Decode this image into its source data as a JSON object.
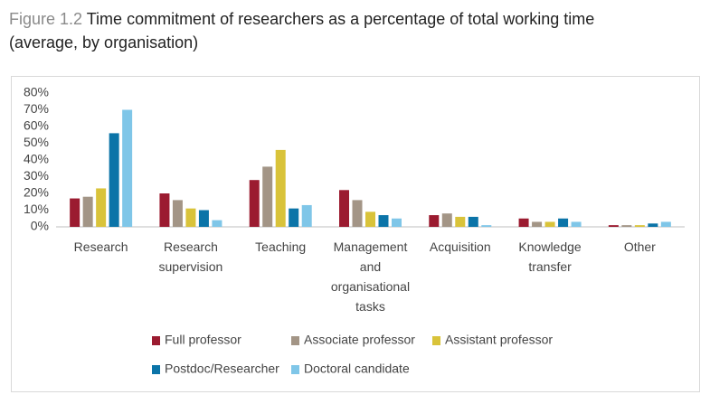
{
  "chart_data": {
    "type": "bar",
    "figure_label": "Figure 1.2",
    "title": "Time commitment of researchers as a percentage of total working time (average, by organisation)",
    "categories": [
      "Research",
      "Research supervision",
      "Teaching",
      "Management and organisational tasks",
      "Acquisition",
      "Knowledge transfer",
      "Other"
    ],
    "series": [
      {
        "name": "Full professor",
        "color": "#9b1b30",
        "values": [
          17,
          20,
          28,
          22,
          7,
          5,
          1
        ]
      },
      {
        "name": "Associate professor",
        "color": "#a39586",
        "values": [
          18,
          16,
          36,
          16,
          8,
          3,
          1
        ]
      },
      {
        "name": "Assistant professor",
        "color": "#d9c33a",
        "values": [
          23,
          11,
          46,
          9,
          6,
          3,
          1
        ]
      },
      {
        "name": "Postdoc/Researcher",
        "color": "#0b74a8",
        "values": [
          56,
          10,
          11,
          7,
          6,
          5,
          2
        ]
      },
      {
        "name": "Doctoral candidate",
        "color": "#7fc6e8",
        "values": [
          70,
          4,
          13,
          5,
          1,
          3,
          3
        ]
      }
    ],
    "ylim": [
      0,
      80
    ],
    "yticks": [
      {
        "value": 0,
        "label": "0%"
      },
      {
        "value": 10,
        "label": "10%"
      },
      {
        "value": 20,
        "label": "20%"
      },
      {
        "value": 30,
        "label": "30%"
      },
      {
        "value": 40,
        "label": "40%"
      },
      {
        "value": 50,
        "label": "50%"
      },
      {
        "value": 60,
        "label": "60%"
      },
      {
        "value": 70,
        "label": "70%"
      },
      {
        "value": 80,
        "label": "80%"
      }
    ],
    "grid": false,
    "legend": "bottom"
  }
}
